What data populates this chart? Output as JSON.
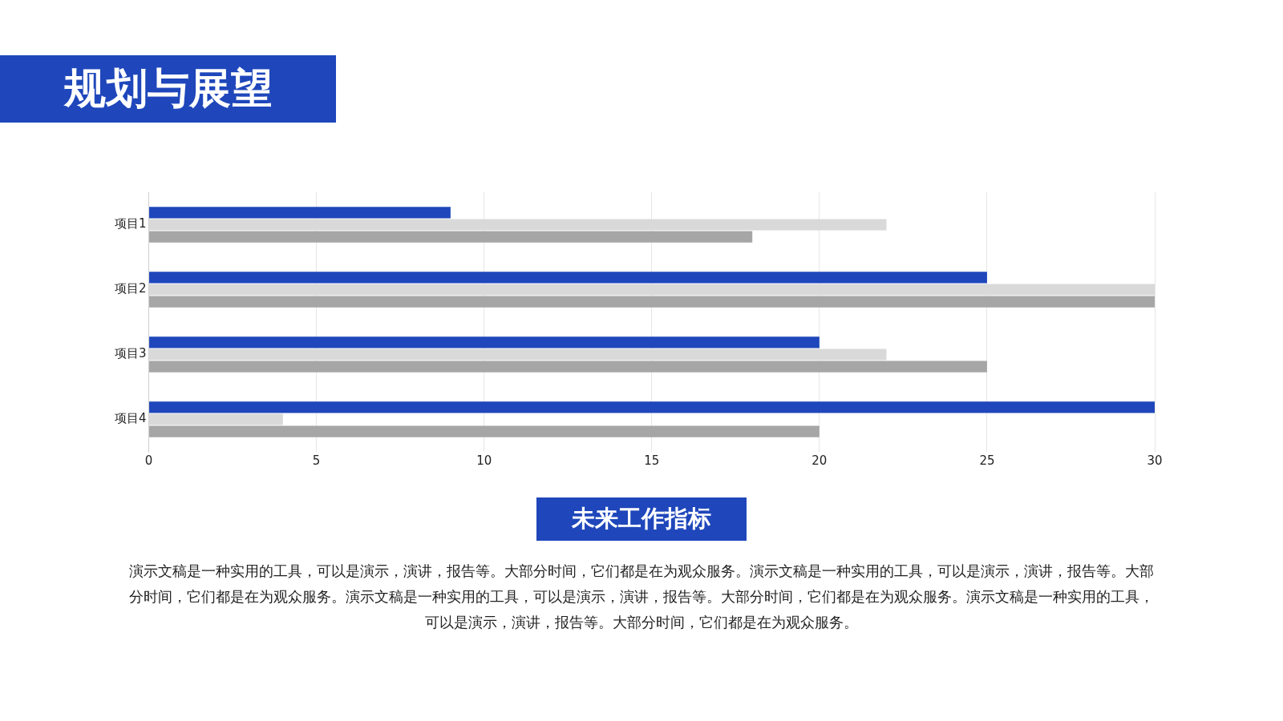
{
  "chart_data": {
    "type": "bar",
    "orientation": "horizontal",
    "title": "规划与展望",
    "subtitle": "未来工作指标",
    "categories": [
      "项目1",
      "项目2",
      "项目3",
      "项目4"
    ],
    "series": [
      {
        "color": "#1f47bb",
        "values": [
          9,
          25,
          20,
          30
        ]
      },
      {
        "color": "#d9d9d9",
        "values": [
          22,
          30,
          22,
          4
        ]
      },
      {
        "color": "#a6a6a6",
        "values": [
          18,
          30,
          25,
          20
        ]
      }
    ],
    "xlim": [
      0,
      30
    ],
    "xticks": [
      0,
      5,
      10,
      15,
      20,
      25,
      30
    ],
    "grid": "x",
    "annotations": [
      "演示文稿是一种实用的工具，可以是演示，演讲，报告等。大部分时间，它们都是在为观众服务。演示文稿是一种实用的工具，可以是演示，演讲，报告等。大部分时间，它们都是在为观众服务。演示文稿是一种实用的工具，可以是演示，演讲，报告等。大部分时间，它们都是在为观众服务。演示文稿是一种实用的工具，可以是演示，演讲，报告等。大部分时间，它们都是在为观众服务。"
    ]
  }
}
